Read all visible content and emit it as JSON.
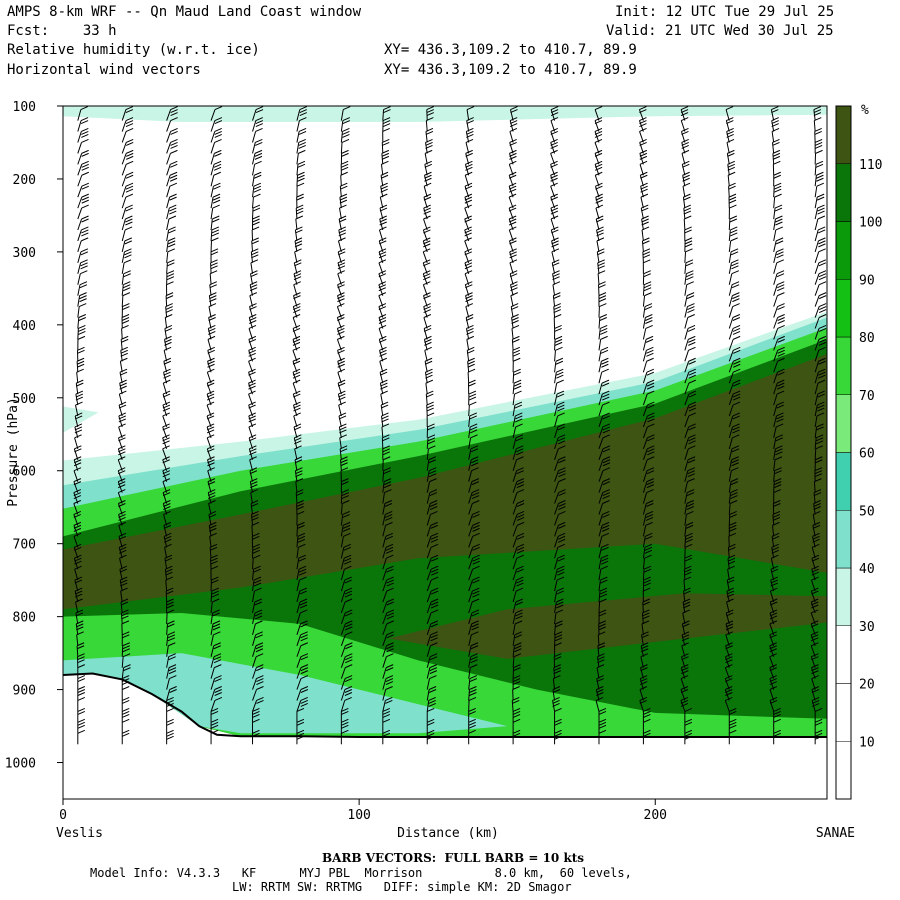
{
  "header": {
    "title": "AMPS 8-km WRF -- Qn Maud Land Coast window",
    "fcst": "Fcst:    33 h",
    "init": "Init: 12 UTC Tue 29 Jul 25",
    "valid": "Valid: 21 UTC Wed 30 Jul 25",
    "field1": "Relative humidity (w.r.t. ice)",
    "field2": "Horizontal wind vectors",
    "xy1": "XY= 436.3,109.2 to 410.7, 89.9",
    "xy2": "XY= 436.3,109.2 to 410.7, 89.9"
  },
  "footer": {
    "barb_note": "BARB VECTORS:  FULL BARB = 10 kts",
    "model_info": "Model Info: V4.3.3   KF      MYJ PBL  Morrison          8.0 km,  60 levels,",
    "model_info2": "LW: RRTM SW: RRTMG   DIFF: simple KM: 2D Smagor"
  },
  "colors": {
    "frame": "#000000",
    "terrain_line": "#000000"
  },
  "chart_data": {
    "type": "heatmap",
    "title": "Relative humidity (w.r.t. ice)",
    "xlabel": "Distance (km)",
    "ylabel": "Pressure (hPa)",
    "x_end_labels": {
      "left": "Veslis",
      "right": "SANAE"
    },
    "xlim": [
      0,
      258
    ],
    "xticks": [
      0,
      100,
      200
    ],
    "ylim": [
      1050,
      100
    ],
    "yticks": [
      100,
      200,
      300,
      400,
      500,
      600,
      700,
      800,
      900,
      1000
    ],
    "colorbar": {
      "unit": "%",
      "labels": [
        10,
        20,
        30,
        40,
        50,
        60,
        70,
        80,
        90,
        100,
        110
      ],
      "bounds": [
        0,
        10,
        20,
        30,
        40,
        50,
        60,
        70,
        80,
        90,
        100,
        110,
        120
      ],
      "colors": [
        "#ffffff",
        "#ffffff",
        "#ffffff",
        "#c8f5e6",
        "#7fe0cc",
        "#40d0b0",
        "#7aea7a",
        "#38d838",
        "#14c014",
        "#0a9a0a",
        "#0a760a",
        "#3d5412",
        "#c83008"
      ]
    },
    "rh_bands": [
      {
        "level": "30",
        "color": "#c8f5e6",
        "boundary": "outer"
      },
      {
        "level": "50",
        "color": "#7fe0cc"
      },
      {
        "level": "70",
        "color": "#38d838"
      },
      {
        "level": "90",
        "color": "#0a760a"
      },
      {
        "level": "100",
        "color": "#3d5412"
      }
    ],
    "terrain_surface": [
      [
        0,
        880
      ],
      [
        10,
        878
      ],
      [
        20,
        886
      ],
      [
        30,
        906
      ],
      [
        40,
        930
      ],
      [
        46,
        950
      ],
      [
        52,
        962
      ],
      [
        60,
        964
      ],
      [
        80,
        964
      ],
      [
        100,
        965
      ],
      [
        150,
        965
      ],
      [
        200,
        965
      ],
      [
        258,
        965
      ]
    ],
    "barb_columns_km": [
      5,
      20,
      35,
      50,
      64,
      79,
      94,
      108,
      123,
      137,
      152,
      166,
      181,
      196,
      210,
      225,
      240,
      254
    ],
    "barb_note": "BARB VECTORS:  FULL BARB = 10 kts"
  }
}
